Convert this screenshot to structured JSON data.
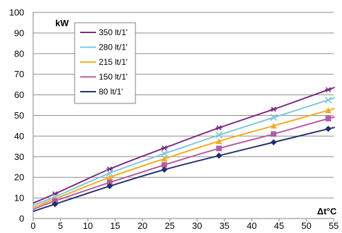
{
  "chart_data": {
    "type": "line",
    "title": "",
    "ylabel": "kW",
    "xlabel": "Δt°C",
    "xlim": [
      0,
      55
    ],
    "ylim": [
      0,
      100
    ],
    "xticks": [
      0,
      5,
      10,
      15,
      20,
      25,
      30,
      35,
      40,
      45,
      50,
      55
    ],
    "yticks": [
      0,
      10,
      20,
      30,
      40,
      50,
      60,
      70,
      80,
      90,
      100
    ],
    "grid": "horizontal",
    "legend_position": "top-left",
    "series": [
      {
        "name": "350 lt/1'",
        "color": "#7a2b82",
        "marker": "asterisk",
        "x": [
          4,
          14,
          24,
          34,
          44,
          54
        ],
        "y": [
          12,
          24,
          34.2,
          44,
          53,
          62.5
        ],
        "curve": [
          [
            0,
            7.5
          ],
          [
            4,
            12
          ],
          [
            14,
            24
          ],
          [
            24,
            34.2
          ],
          [
            34,
            44
          ],
          [
            44,
            53
          ],
          [
            54,
            62.5
          ],
          [
            55,
            63.5
          ]
        ]
      },
      {
        "name": "280 lt/1'",
        "color": "#7cc8dc",
        "marker": "x",
        "x": [
          4,
          14,
          24,
          34,
          44,
          54
        ],
        "y": [
          10.5,
          22,
          31.5,
          40.5,
          49,
          57.5
        ],
        "curve": [
          [
            0,
            6.5
          ],
          [
            4,
            10.5
          ],
          [
            14,
            22
          ],
          [
            24,
            31.5
          ],
          [
            34,
            40.5
          ],
          [
            44,
            49
          ],
          [
            54,
            57.5
          ],
          [
            55,
            58.5
          ]
        ]
      },
      {
        "name": "215 lt/1'",
        "color": "#f5ac1e",
        "marker": "triangle",
        "x": [
          4,
          14,
          24,
          34,
          44,
          54
        ],
        "y": [
          9.5,
          20,
          29,
          37.5,
          45,
          52.5
        ],
        "curve": [
          [
            0,
            5.5
          ],
          [
            4,
            9.5
          ],
          [
            14,
            20
          ],
          [
            24,
            29
          ],
          [
            34,
            37.5
          ],
          [
            44,
            45
          ],
          [
            54,
            52.5
          ],
          [
            55,
            53.5
          ]
        ]
      },
      {
        "name": "150 lt/1'",
        "color": "#b55aa4",
        "marker": "square",
        "x": [
          4,
          14,
          24,
          34,
          44,
          54
        ],
        "y": [
          8.5,
          17.5,
          26,
          34,
          41,
          48.5
        ],
        "curve": [
          [
            0,
            4.5
          ],
          [
            4,
            8.5
          ],
          [
            14,
            17.5
          ],
          [
            24,
            26
          ],
          [
            34,
            34
          ],
          [
            44,
            41
          ],
          [
            54,
            48.5
          ],
          [
            55,
            49
          ]
        ]
      },
      {
        "name": "80 lt/1'",
        "color": "#23306e",
        "marker": "diamond",
        "x": [
          4,
          14,
          24,
          34,
          44,
          54
        ],
        "y": [
          7,
          15.7,
          23.7,
          30.5,
          37,
          43.5
        ],
        "curve": [
          [
            0,
            3.5
          ],
          [
            4,
            7
          ],
          [
            14,
            15.7
          ],
          [
            24,
            23.7
          ],
          [
            34,
            30.5
          ],
          [
            44,
            37
          ],
          [
            54,
            43.5
          ],
          [
            55,
            44
          ]
        ]
      }
    ]
  }
}
